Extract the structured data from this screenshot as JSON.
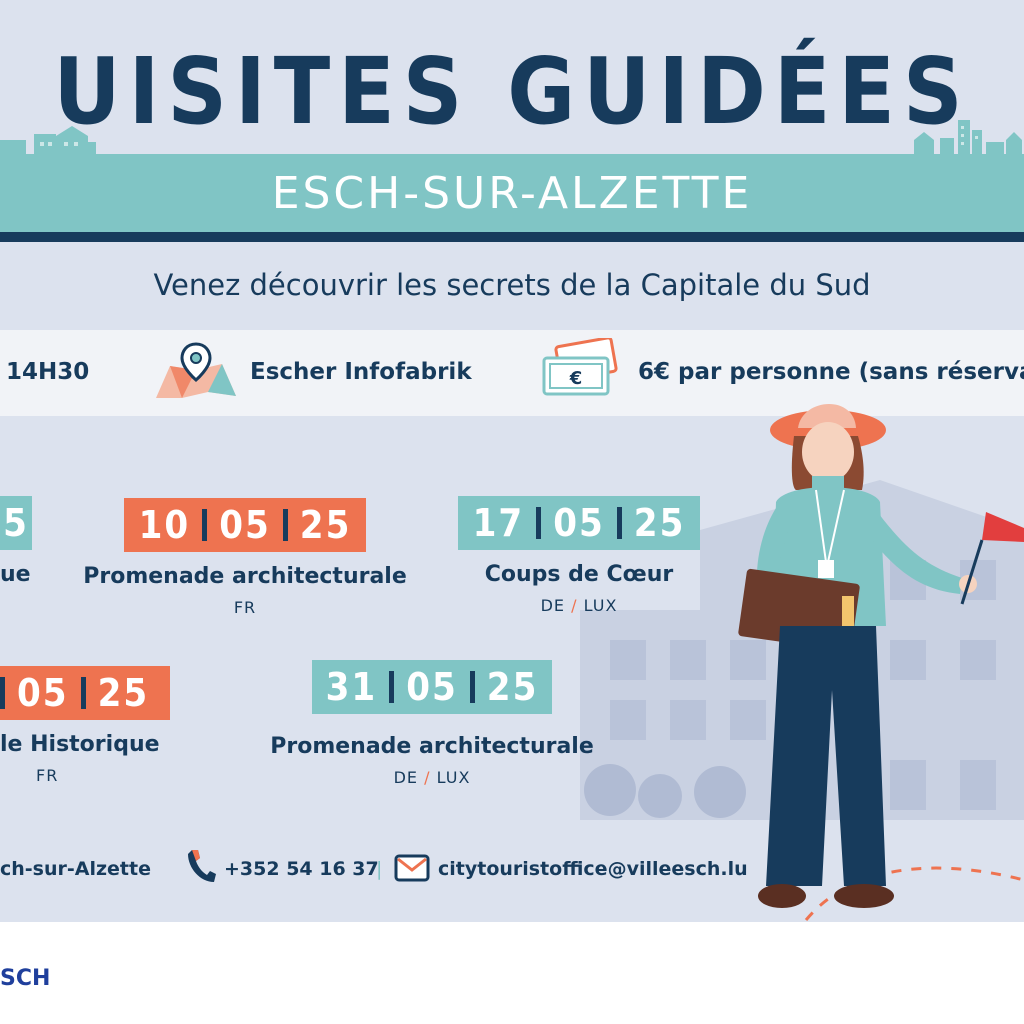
{
  "header": {
    "title": "UISITES GUIDÉES",
    "band_text": "ESCH-SUR-ALZETTE",
    "subtitle": "Venez découvrir les secrets de la Capitale du Sud"
  },
  "info": {
    "time": "14H30",
    "location": "Escher Infofabrik",
    "price": "6€ par personne (sans réserva",
    "currency_symbol": "€"
  },
  "events": [
    {
      "date_parts": [
        "",
        "",
        "5"
      ],
      "title": "ue",
      "lang": ""
    },
    {
      "date_parts": [
        "10",
        "05",
        "25"
      ],
      "title": "Promenade architecturale",
      "lang": "FR"
    },
    {
      "date_parts": [
        "17",
        "05",
        "25"
      ],
      "title": "Coups de Cœur",
      "lang_a": "DE",
      "lang_sep": "/",
      "lang_b": "LUX"
    },
    {
      "date_parts": [
        "",
        "05",
        "25"
      ],
      "title": "le Historique",
      "lang": "FR"
    },
    {
      "date_parts": [
        "31",
        "05",
        "25"
      ],
      "title": "Promenade architecturale",
      "lang_a": "DE",
      "lang_sep": "/",
      "lang_b": "LUX"
    }
  ],
  "contact": {
    "address": "ch-sur-Alzette",
    "phone": "+352 54 16 37",
    "separator": "|",
    "email": "citytouristoffice@villeesch.lu"
  },
  "footer": {
    "logo": "SCH"
  },
  "colors": {
    "navy": "#173b5c",
    "teal": "#80c5c5",
    "orange": "#ee7350",
    "background": "#dce2ee"
  },
  "icons": [
    "skyline-illustration",
    "map-pin-icon",
    "money-icon",
    "phone-icon",
    "mail-icon",
    "guide-illustration",
    "building-illustration"
  ]
}
